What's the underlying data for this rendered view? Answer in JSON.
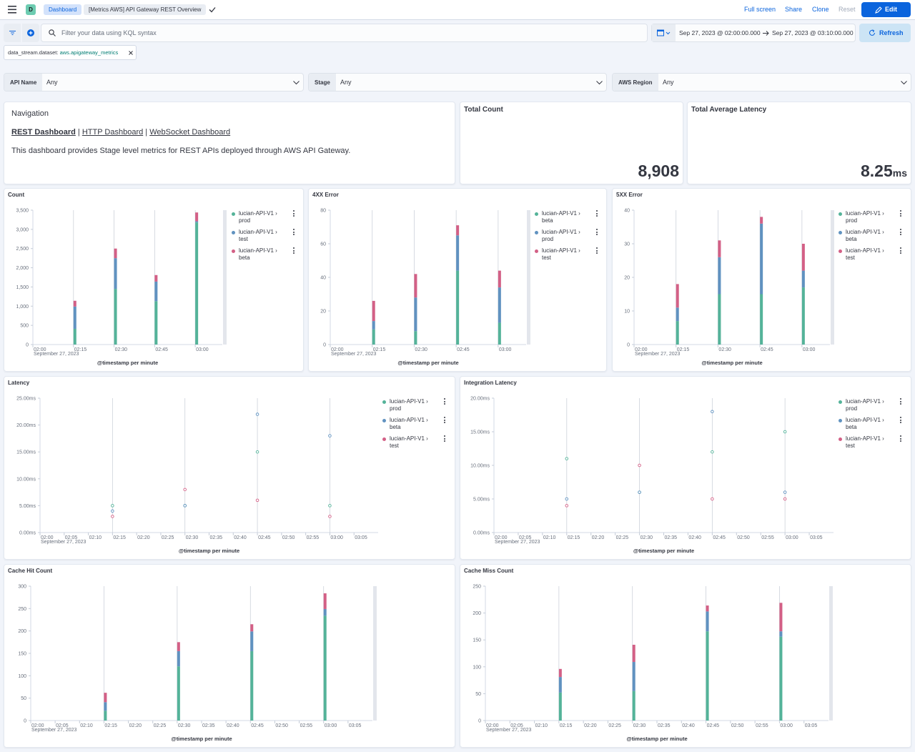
{
  "header": {
    "avatar": "D",
    "breadcrumbs": [
      "Dashboard",
      "[Metrics AWS] API Gateway REST Overview"
    ],
    "actions": [
      "Full screen",
      "Share",
      "Clone",
      "Reset"
    ],
    "edit": "Edit"
  },
  "query": {
    "placeholder": "Filter your data using KQL syntax",
    "start": "Sep 27, 2023 @ 02:00:00.000",
    "end": "Sep 27, 2023 @ 03:10:00.000",
    "refresh": "Refresh"
  },
  "filter": {
    "field": "data_stream.dataset:",
    "value": "aws.apigateway_metrics"
  },
  "controls": [
    {
      "label": "API Name",
      "value": "Any"
    },
    {
      "label": "Stage",
      "value": "Any"
    },
    {
      "label": "AWS Region",
      "value": "Any"
    }
  ],
  "navigation": {
    "title": "Navigation",
    "links": [
      "REST Dashboard",
      "HTTP Dashboard",
      "WebSocket Dashboard"
    ],
    "separator": "|",
    "description": "This dashboard provides Stage level metrics for REST APIs deployed through AWS API Gateway."
  },
  "metrics": [
    {
      "title": "Total Count",
      "value": "8,908"
    },
    {
      "title": "Total Average Latency",
      "value": "8.25",
      "unit": "ms"
    }
  ],
  "chart_data": [
    {
      "type": "bar",
      "stacked": true,
      "title": "Count",
      "x": [
        "02:15",
        "02:30",
        "02:45",
        "03:00"
      ],
      "xlim": [
        "02:00",
        "03:10"
      ],
      "xticks": [
        "02:00",
        "02:15",
        "02:30",
        "02:45",
        "03:00"
      ],
      "x_date": "September 27, 2023",
      "x_label": "@timestamp per minute",
      "ylim": [
        0,
        3500
      ],
      "yticks": [
        0,
        500,
        {
          "value": 1000,
          "label": "1,000"
        },
        {
          "value": 1500,
          "label": "1,500"
        },
        {
          "value": 2000,
          "label": "2,000"
        },
        {
          "value": 2500,
          "label": "2,500"
        },
        {
          "value": 3000,
          "label": "3,000"
        },
        {
          "value": 3500,
          "label": "3,500"
        }
      ],
      "series": [
        {
          "name": "lucian-API-V1 › prod",
          "color": "#54b399",
          "values": [
            410,
            1450,
            1130,
            3180
          ]
        },
        {
          "name": "lucian-API-V1 › test",
          "color": "#6092c0",
          "values": [
            580,
            800,
            510,
            30
          ]
        },
        {
          "name": "lucian-API-V1 › beta",
          "color": "#d36086",
          "values": [
            150,
            250,
            170,
            230
          ]
        }
      ]
    },
    {
      "type": "bar",
      "stacked": true,
      "title": "4XX Error",
      "x": [
        "02:15",
        "02:30",
        "02:45",
        "03:00"
      ],
      "xlim": [
        "02:00",
        "03:10"
      ],
      "xticks": [
        "02:00",
        "02:15",
        "02:30",
        "02:45",
        "03:00"
      ],
      "x_date": "September 27, 2023",
      "x_label": "@timestamp per minute",
      "ylim": [
        0,
        80
      ],
      "yticks": [
        0,
        20,
        40,
        60,
        80
      ],
      "series": [
        {
          "name": "lucian-API-V1 › beta",
          "color": "#54b399",
          "values": [
            9,
            8,
            44,
            13
          ]
        },
        {
          "name": "lucian-API-V1 › prod",
          "color": "#6092c0",
          "values": [
            5,
            20,
            21,
            21
          ]
        },
        {
          "name": "lucian-API-V1 › test",
          "color": "#d36086",
          "values": [
            12,
            14,
            6,
            10
          ]
        }
      ]
    },
    {
      "type": "bar",
      "stacked": true,
      "title": "5XX Error",
      "x": [
        "02:15",
        "02:30",
        "02:45",
        "03:00"
      ],
      "xlim": [
        "02:00",
        "03:10"
      ],
      "xticks": [
        "02:00",
        "02:15",
        "02:30",
        "02:45",
        "03:00"
      ],
      "x_date": "September 27, 2023",
      "x_label": "@timestamp per minute",
      "ylim": [
        0,
        40
      ],
      "yticks": [
        0,
        10,
        20,
        30,
        40
      ],
      "series": [
        {
          "name": "lucian-API-V1 › prod",
          "color": "#54b399",
          "values": [
            7,
            15,
            15,
            17
          ]
        },
        {
          "name": "lucian-API-V1 › beta",
          "color": "#6092c0",
          "values": [
            4,
            11,
            21,
            5
          ]
        },
        {
          "name": "lucian-API-V1 › test",
          "color": "#d36086",
          "values": [
            7,
            5,
            2,
            8
          ]
        }
      ]
    },
    {
      "type": "scatter",
      "title": "Latency",
      "x": [
        "02:15",
        "02:30",
        "02:45",
        "03:00"
      ],
      "xlim": [
        "02:00",
        "03:10"
      ],
      "xticks": [
        "02:00",
        "02:05",
        "02:10",
        "02:15",
        "02:20",
        "02:25",
        "02:30",
        "02:35",
        "02:40",
        "02:45",
        "02:50",
        "02:55",
        "03:00",
        "03:05"
      ],
      "x_date": "September 27, 2023",
      "x_label": "@timestamp per minute",
      "ylim": [
        0,
        25
      ],
      "yticks": [
        {
          "value": 0,
          "label": "0.00ms"
        },
        {
          "value": 5,
          "label": "5.00ms"
        },
        {
          "value": 10,
          "label": "10.00ms"
        },
        {
          "value": 15,
          "label": "15.00ms"
        },
        {
          "value": 20,
          "label": "20.00ms"
        },
        {
          "value": 25,
          "label": "25.00ms"
        }
      ],
      "series": [
        {
          "name": "lucian-API-V1 › prod",
          "color": "#54b399",
          "values": [
            5,
            5,
            15,
            5
          ]
        },
        {
          "name": "lucian-API-V1 › beta",
          "color": "#6092c0",
          "values": [
            4,
            5,
            22,
            18
          ]
        },
        {
          "name": "lucian-API-V1 › test",
          "color": "#d36086",
          "values": [
            3,
            8,
            6,
            3
          ]
        }
      ]
    },
    {
      "type": "scatter",
      "title": "Integration Latency",
      "x": [
        "02:15",
        "02:30",
        "02:45",
        "03:00"
      ],
      "xlim": [
        "02:00",
        "03:10"
      ],
      "xticks": [
        "02:00",
        "02:05",
        "02:10",
        "02:15",
        "02:20",
        "02:25",
        "02:30",
        "02:35",
        "02:40",
        "02:45",
        "02:50",
        "02:55",
        "03:00",
        "03:05"
      ],
      "x_date": "September 27, 2023",
      "x_label": "@timestamp per minute",
      "ylim": [
        0,
        20
      ],
      "yticks": [
        {
          "value": 0,
          "label": "0.00ms"
        },
        {
          "value": 5,
          "label": "5.00ms"
        },
        {
          "value": 10,
          "label": "10.00ms"
        },
        {
          "value": 15,
          "label": "15.00ms"
        },
        {
          "value": 20,
          "label": "20.00ms"
        }
      ],
      "series": [
        {
          "name": "lucian-API-V1 › prod",
          "color": "#54b399",
          "values": [
            11,
            6,
            12,
            15
          ]
        },
        {
          "name": "lucian-API-V1 › beta",
          "color": "#6092c0",
          "values": [
            5,
            6,
            18,
            6
          ]
        },
        {
          "name": "lucian-API-V1 › test",
          "color": "#d36086",
          "values": [
            4,
            10,
            5,
            5
          ]
        }
      ]
    },
    {
      "type": "bar",
      "stacked": true,
      "title": "Cache Hit Count",
      "x": [
        "02:15",
        "02:30",
        "02:45",
        "03:00"
      ],
      "xlim": [
        "02:00",
        "03:10"
      ],
      "xticks": [
        "02:00",
        "02:05",
        "02:10",
        "02:15",
        "02:20",
        "02:25",
        "02:30",
        "02:35",
        "02:40",
        "02:45",
        "02:50",
        "02:55",
        "03:00",
        "03:05"
      ],
      "x_date": "September 27, 2023",
      "x_label": "@timestamp per minute",
      "ylim": [
        0,
        300
      ],
      "yticks": [
        0,
        50,
        100,
        150,
        200,
        250,
        300
      ],
      "series": [
        {
          "color": "#54b399",
          "values": [
            22,
            121,
            155,
            234
          ]
        },
        {
          "color": "#6092c0",
          "values": [
            19,
            34,
            44,
            15
          ]
        },
        {
          "color": "#d36086",
          "values": [
            21,
            20,
            16,
            35
          ]
        }
      ]
    },
    {
      "type": "bar",
      "stacked": true,
      "title": "Cache Miss Count",
      "x": [
        "02:15",
        "02:30",
        "02:45",
        "03:00"
      ],
      "xlim": [
        "02:00",
        "03:10"
      ],
      "xticks": [
        "02:00",
        "02:05",
        "02:10",
        "02:15",
        "02:20",
        "02:25",
        "02:30",
        "02:35",
        "02:40",
        "02:45",
        "02:50",
        "02:55",
        "03:00",
        "03:05"
      ],
      "x_date": "September 27, 2023",
      "x_label": "@timestamp per minute",
      "ylim": [
        0,
        250
      ],
      "yticks": [
        0,
        50,
        100,
        150,
        200,
        250
      ],
      "series": [
        {
          "color": "#54b399",
          "values": [
            52,
            55,
            166,
            156
          ]
        },
        {
          "color": "#6092c0",
          "values": [
            29,
            54,
            37,
            10
          ]
        },
        {
          "color": "#d36086",
          "values": [
            15,
            32,
            11,
            53
          ]
        }
      ]
    }
  ]
}
